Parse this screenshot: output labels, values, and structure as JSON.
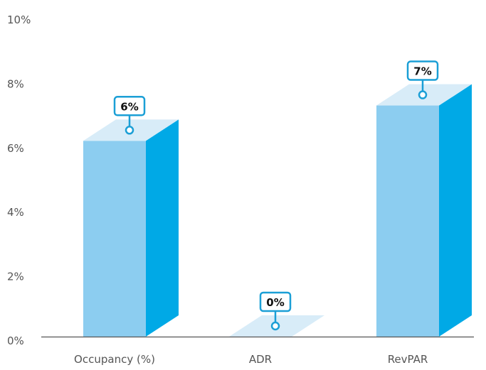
{
  "chart_data": {
    "type": "bar",
    "categories": [
      "Occupancy (%)",
      "ADR",
      "RevPAR"
    ],
    "values": [
      6.1,
      0,
      7.2
    ],
    "data_labels": [
      "6%",
      "0%",
      "7%"
    ],
    "y_ticks": [
      "0%",
      "2%",
      "4%",
      "6%",
      "8%",
      "10%"
    ],
    "ylim": [
      0,
      10
    ],
    "grid": false,
    "style": "3d",
    "colors": {
      "front": "#8ccdf0",
      "side": "#00a9e6",
      "top": "#d8ecf8",
      "callout": "#1b9fd6",
      "axis": "#555555"
    }
  }
}
